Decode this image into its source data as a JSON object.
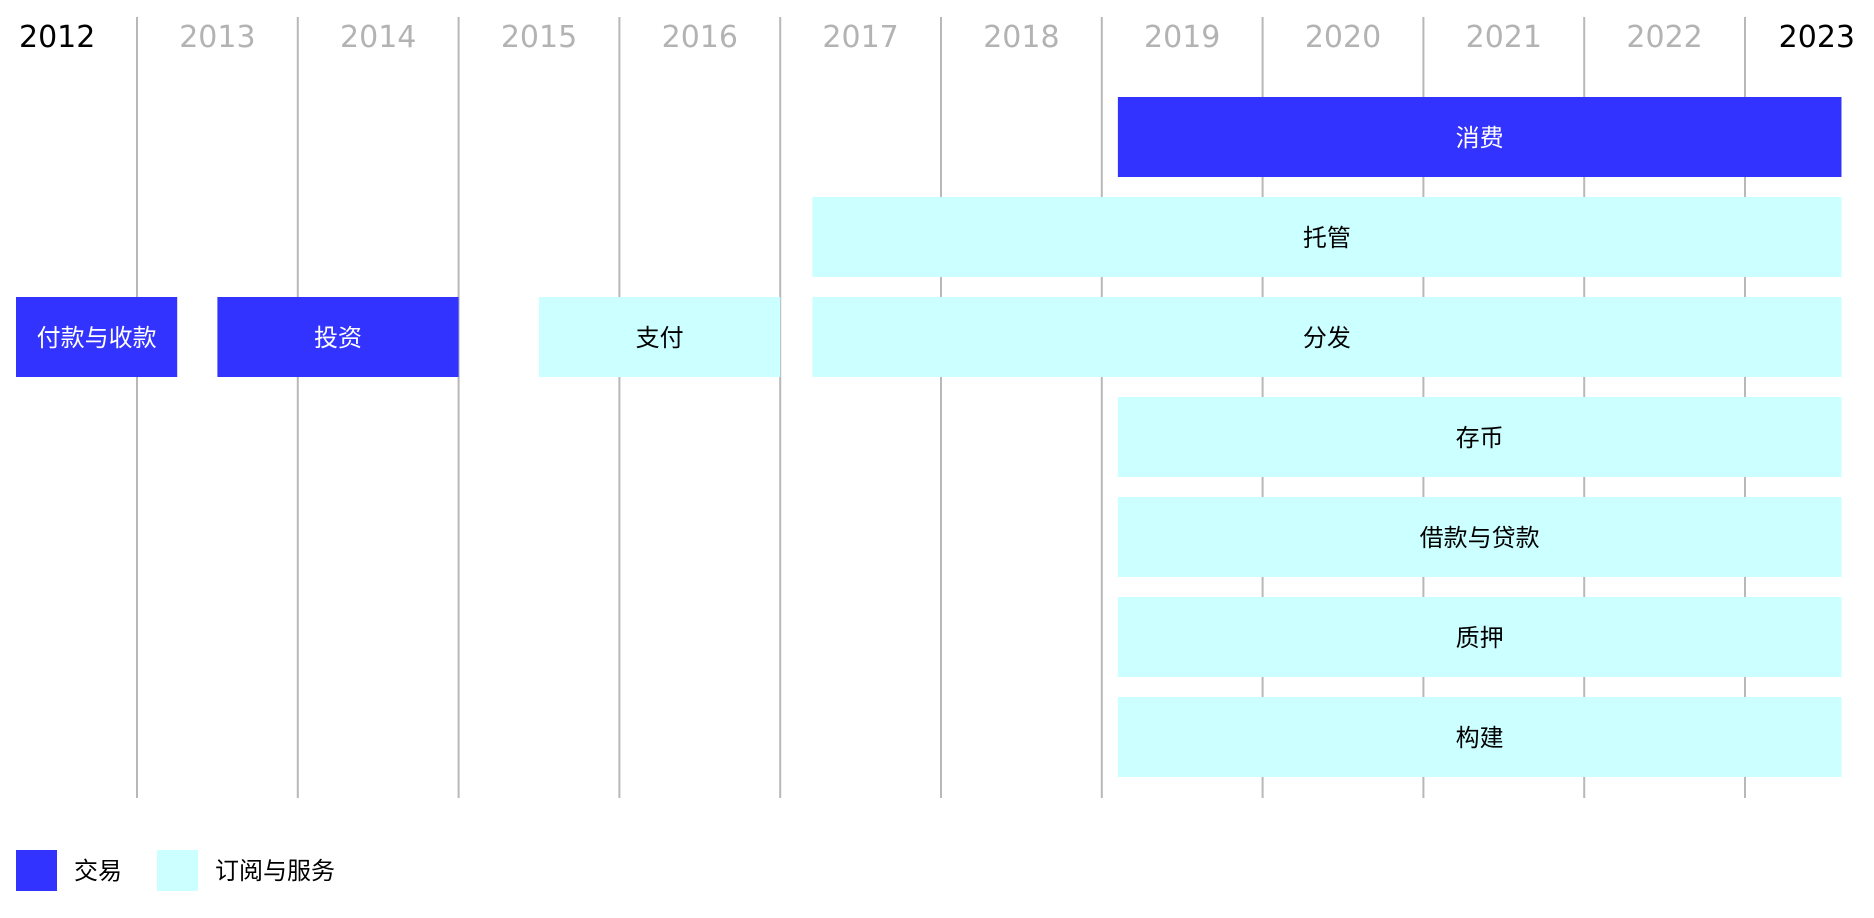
{
  "chart_data": {
    "type": "timeline",
    "years": [
      "2012",
      "2013",
      "2014",
      "2015",
      "2016",
      "2017",
      "2018",
      "2019",
      "2020",
      "2021",
      "2022",
      "2023"
    ],
    "highlighted_years": [
      "2012",
      "2023"
    ],
    "grid": true,
    "bars": [
      {
        "label": "消费",
        "category": "交易",
        "start": 2019.1,
        "end": 2023.6,
        "row": 0
      },
      {
        "label": "托管",
        "category": "订阅与服务",
        "start": 2017.2,
        "end": 2023.6,
        "row": 1
      },
      {
        "label": "付款与收款",
        "category": "交易",
        "start": 2012.0,
        "end": 2013.25,
        "row": 2
      },
      {
        "label": "投资",
        "category": "交易",
        "start": 2013.5,
        "end": 2015.0,
        "row": 2
      },
      {
        "label": "支付",
        "category": "订阅与服务",
        "start": 2015.5,
        "end": 2017.0,
        "row": 2
      },
      {
        "label": "分发",
        "category": "订阅与服务",
        "start": 2017.2,
        "end": 2023.6,
        "row": 2
      },
      {
        "label": "存币",
        "category": "订阅与服务",
        "start": 2019.1,
        "end": 2023.6,
        "row": 3
      },
      {
        "label": "借款与贷款",
        "category": "订阅与服务",
        "start": 2019.1,
        "end": 2023.6,
        "row": 4
      },
      {
        "label": "质押",
        "category": "订阅与服务",
        "start": 2019.1,
        "end": 2023.6,
        "row": 5
      },
      {
        "label": "构建",
        "category": "订阅与服务",
        "start": 2019.1,
        "end": 2023.6,
        "row": 6
      }
    ],
    "legend": [
      {
        "name": "交易",
        "color": "#3333ff"
      },
      {
        "name": "订阅与服务",
        "color": "#ccffff"
      }
    ],
    "legend_position": "bottom-left"
  },
  "colors": {
    "transaction": "#3333ff",
    "subscription": "#ccffff",
    "gridline": "#b8b8b8",
    "year_muted": "#b3b3b3",
    "year_strong": "#000000",
    "label_on_dark": "#ffffff",
    "label_on_light": "#000000"
  }
}
